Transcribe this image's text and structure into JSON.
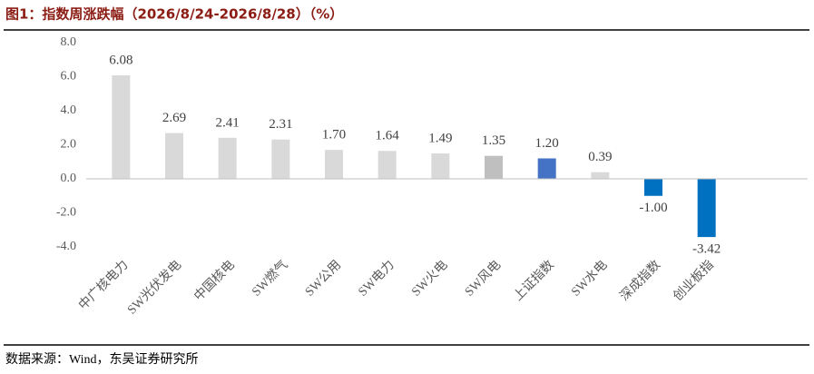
{
  "chart_data": {
    "type": "bar",
    "title": "图1：指数周涨跌幅（2026/8/24-2026/8/28）（%）",
    "source": "数据来源：Wind，东吴证券研究所",
    "categories": [
      "中广核电力",
      "SW光伏发电",
      "中国核电",
      "SW燃气",
      "SW公用",
      "SW电力",
      "SW火电",
      "SW风电",
      "上证指数",
      "SW水电",
      "深成指数",
      "创业板指"
    ],
    "values": [
      6.08,
      2.69,
      2.41,
      2.31,
      1.7,
      1.64,
      1.49,
      1.35,
      1.2,
      0.39,
      -1.0,
      -3.42
    ],
    "value_labels": [
      "6.08",
      "2.69",
      "2.41",
      "2.31",
      "1.70",
      "1.64",
      "1.49",
      "1.35",
      "1.20",
      "0.39",
      "-1.00",
      "-3.42"
    ],
    "colors": [
      "#d9d9d9",
      "#d9d9d9",
      "#d9d9d9",
      "#d9d9d9",
      "#d9d9d9",
      "#d9d9d9",
      "#d9d9d9",
      "#bfbfbf",
      "#4472c4",
      "#d9d9d9",
      "#0070c0",
      "#0070c0"
    ],
    "ylim": [
      -4,
      8
    ],
    "yticks": [
      {
        "value": -4,
        "label": "-4.0"
      },
      {
        "value": -2,
        "label": "-2.0"
      },
      {
        "value": 0,
        "label": "0.0"
      },
      {
        "value": 2,
        "label": "2.0"
      },
      {
        "value": 4,
        "label": "4.0"
      },
      {
        "value": 6,
        "label": "6.0"
      },
      {
        "value": 8,
        "label": "8.0"
      }
    ],
    "grid": false
  }
}
